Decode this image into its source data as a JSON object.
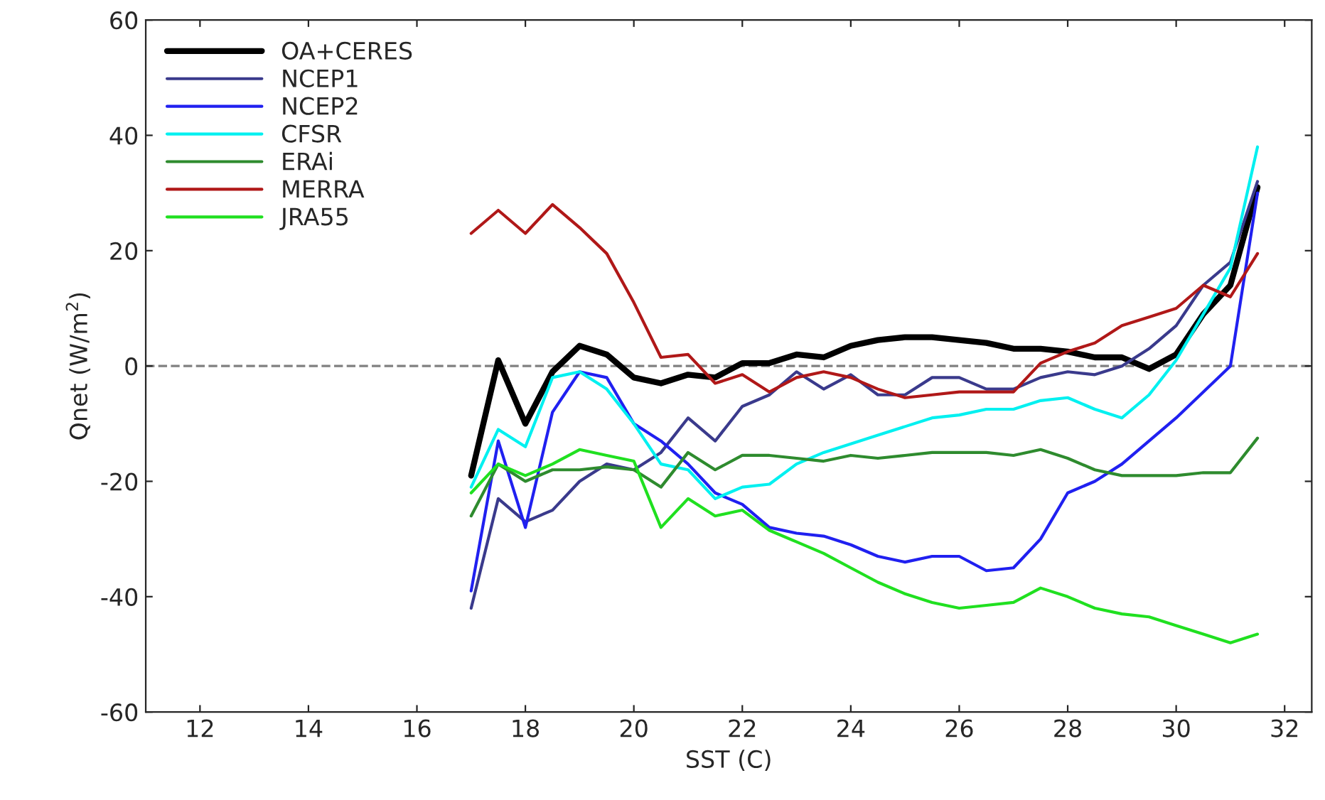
{
  "chart_data": {
    "type": "line",
    "xlabel": "SST (C)",
    "ylabel": "Qnet (W/m$^{2}$)",
    "x": [
      17,
      17.5,
      18,
      18.5,
      19,
      19.5,
      20,
      20.5,
      21,
      21.5,
      22,
      22.5,
      23,
      23.5,
      24,
      24.5,
      25,
      25.5,
      26,
      26.5,
      27,
      27.5,
      28,
      28.5,
      29,
      29.5,
      30,
      30.5,
      31,
      31.5
    ],
    "xlim": [
      11,
      32.5
    ],
    "xticks": [
      12,
      14,
      16,
      18,
      20,
      22,
      24,
      26,
      28,
      30,
      32
    ],
    "ylim": [
      -60,
      60
    ],
    "yticks": [
      -60,
      -40,
      -20,
      0,
      20,
      40,
      60
    ],
    "grid": false,
    "legend": "top left",
    "marker": "none",
    "line_style": "solid",
    "ref_lines": [
      {
        "axis": "y",
        "value": 0,
        "color": "#808080",
        "line_style": "dashed"
      }
    ],
    "series": [
      {
        "name": "OA+CERES",
        "color": "#000000",
        "values": [
          -19,
          1,
          -10,
          -1,
          3.5,
          2,
          -2,
          -3,
          -1.5,
          -2,
          0.5,
          0.5,
          2,
          1.5,
          3.5,
          4.5,
          5,
          5,
          4.5,
          4,
          3,
          3,
          2.5,
          1.5,
          1.5,
          -0.5,
          2,
          9,
          14,
          31
        ]
      },
      {
        "name": "NCEP1",
        "color": "#3a3a8c",
        "values": [
          -42,
          -23,
          -27,
          -25,
          -20,
          -17,
          -18,
          -15,
          -9,
          -13,
          -7,
          -5,
          -1,
          -4,
          -1.5,
          -5,
          -5,
          -2,
          -2,
          -4,
          -4,
          -2,
          -1,
          -1.5,
          0,
          3,
          7,
          14,
          18,
          32
        ]
      },
      {
        "name": "NCEP2",
        "color": "#2020f0",
        "values": [
          -39,
          -13,
          -28,
          -8,
          -1,
          -2,
          -10,
          -13,
          -17,
          -22,
          -24,
          -28,
          -29,
          -29.5,
          -31,
          -33,
          -34,
          -33,
          -33,
          -35.5,
          -35,
          -30,
          -22,
          -20,
          -17,
          -13,
          -9,
          -4.5,
          0,
          30
        ]
      },
      {
        "name": "CFSR",
        "color": "#00f0f0",
        "values": [
          -21,
          -11,
          -14,
          -2,
          -1,
          -4,
          -10,
          -17,
          -18,
          -23,
          -21,
          -20.5,
          -17,
          -15,
          -13.5,
          -12,
          -10.5,
          -9,
          -8.5,
          -7.5,
          -7.5,
          -6,
          -5.5,
          -7.5,
          -9,
          -5,
          1,
          9,
          17,
          38
        ]
      },
      {
        "name": "ERAi",
        "color": "#2e8b2e",
        "values": [
          -26,
          -17,
          -20,
          -18,
          -18,
          -17.5,
          -18,
          -21,
          -15,
          -18,
          -15.5,
          -15.5,
          -16,
          -16.5,
          -15.5,
          -16,
          -15.5,
          -15,
          -15,
          -15,
          -15.5,
          -14.5,
          -16,
          -18,
          -19,
          -19,
          -19,
          -18.5,
          -18.5,
          -12.5
        ]
      },
      {
        "name": "MERRA",
        "color": "#b01818",
        "values": [
          23,
          27,
          23,
          28,
          24,
          19.5,
          11,
          1.5,
          2,
          -3,
          -1.5,
          -4.5,
          -2,
          -1,
          -2,
          -4,
          -5.5,
          -5,
          -4.5,
          -4.5,
          -4.5,
          0.5,
          2.5,
          4,
          7,
          8.5,
          10,
          14,
          12,
          19.5
        ]
      },
      {
        "name": "JRA55",
        "color": "#20e020",
        "values": [
          -22,
          -17,
          -19,
          -17,
          -14.5,
          -15.5,
          -16.5,
          -28,
          -23,
          -26,
          -25,
          -28.5,
          -30.5,
          -32.5,
          -35,
          -37.5,
          -39.5,
          -41,
          -42,
          -41.5,
          -41,
          -38.5,
          -40,
          -42,
          -43,
          -43.5,
          -45,
          -46.5,
          -48,
          -46.5
        ]
      }
    ]
  }
}
